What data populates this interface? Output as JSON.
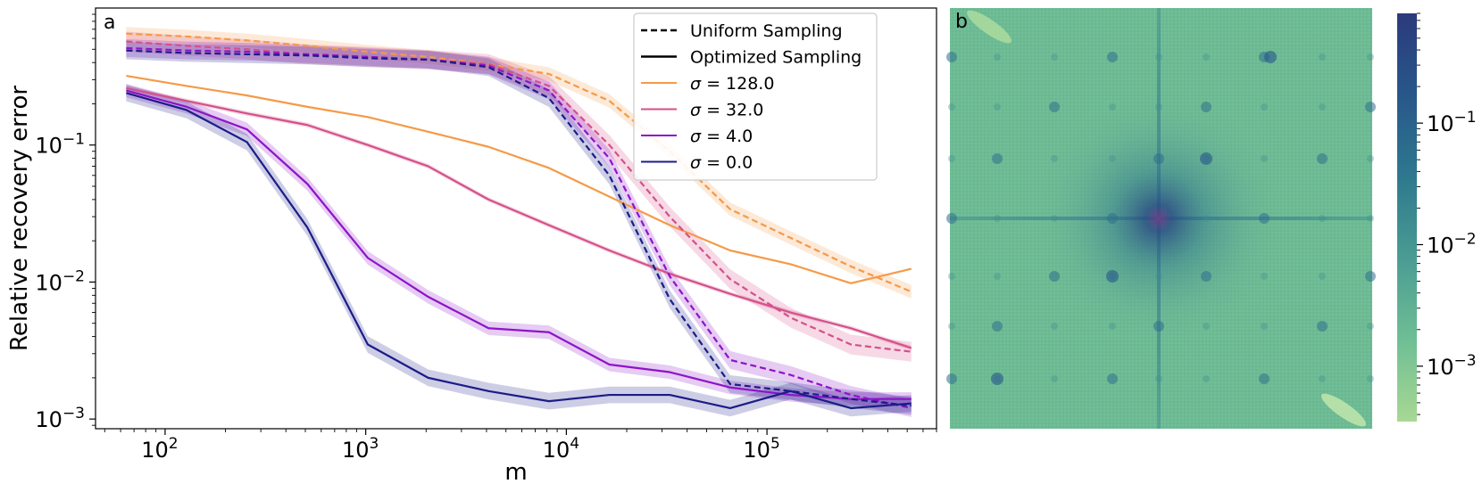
{
  "chart_data": [
    {
      "type": "line",
      "panel": "a",
      "xscale": "log",
      "yscale": "log",
      "xlabel": "m",
      "ylabel": "Relative recovery error",
      "xlim": [
        45,
        700000
      ],
      "ylim": [
        0.00085,
        1.0
      ],
      "xticks": [
        {
          "value": 100,
          "base": "10",
          "exp": "2"
        },
        {
          "value": 1000,
          "base": "10",
          "exp": "3"
        },
        {
          "value": 10000,
          "base": "10",
          "exp": "4"
        },
        {
          "value": 100000,
          "base": "10",
          "exp": "5"
        }
      ],
      "yticks": [
        {
          "value": 0.001,
          "base": "10",
          "exp": "−3"
        },
        {
          "value": 0.01,
          "base": "10",
          "exp": "−2"
        },
        {
          "value": 0.1,
          "base": "10",
          "exp": "−1"
        }
      ],
      "legend": {
        "placement": "top-right",
        "style_entries": [
          {
            "label": "Uniform Sampling",
            "dash": true
          },
          {
            "label": "Optimized Sampling",
            "dash": false
          }
        ]
      },
      "x": [
        64,
        128,
        256,
        512,
        1024,
        2048,
        4096,
        8192,
        16384,
        32768,
        65536,
        131072,
        262144,
        524288
      ],
      "series": [
        {
          "name": "σ = 128.0",
          "sym": "σ",
          "val": "128.0",
          "color": "#f59a48",
          "legend": true,
          "dashed": false,
          "band": 0.0,
          "values": [
            0.32,
            0.27,
            0.23,
            0.19,
            0.16,
            0.125,
            0.097,
            0.068,
            0.042,
            0.026,
            0.017,
            0.0135,
            0.0098,
            0.0125
          ]
        },
        {
          "name": "σ = 128.0",
          "sym": "σ",
          "val": "128.0",
          "color": "#f59a48",
          "legend": false,
          "dashed": true,
          "band": 0.12,
          "values": [
            0.65,
            0.62,
            0.58,
            0.53,
            0.48,
            0.44,
            0.39,
            0.33,
            0.21,
            0.09,
            0.034,
            0.021,
            0.013,
            0.0085
          ]
        },
        {
          "name": "σ = 32.0",
          "sym": "σ",
          "val": "32.0",
          "color": "#d4508a",
          "legend": true,
          "dashed": false,
          "band": 0.04,
          "values": [
            0.26,
            0.21,
            0.17,
            0.14,
            0.1,
            0.07,
            0.04,
            0.026,
            0.017,
            0.0115,
            0.0082,
            0.006,
            0.0046,
            0.0033
          ]
        },
        {
          "name": "σ = 32.0",
          "sym": "σ",
          "val": "32.0",
          "color": "#d4508a",
          "legend": false,
          "dashed": true,
          "band": 0.18,
          "values": [
            0.57,
            0.53,
            0.5,
            0.46,
            0.44,
            0.42,
            0.39,
            0.27,
            0.1,
            0.03,
            0.0105,
            0.0055,
            0.0035,
            0.0031
          ]
        },
        {
          "name": "σ = 4.0",
          "sym": "σ",
          "val": "4.0",
          "color": "#8e14c8",
          "legend": true,
          "dashed": false,
          "band": 0.12,
          "values": [
            0.25,
            0.19,
            0.13,
            0.052,
            0.015,
            0.0078,
            0.0046,
            0.0043,
            0.0025,
            0.0022,
            0.0017,
            0.0015,
            0.0014,
            0.0014
          ]
        },
        {
          "name": "σ = 4.0",
          "sym": "σ",
          "val": "4.0",
          "color": "#8e14c8",
          "legend": false,
          "dashed": true,
          "band": 0.16,
          "values": [
            0.51,
            0.49,
            0.48,
            0.46,
            0.44,
            0.42,
            0.38,
            0.25,
            0.08,
            0.011,
            0.0027,
            0.0021,
            0.0015,
            0.0012
          ]
        },
        {
          "name": "σ = 0.0",
          "sym": "σ",
          "val": "0.0",
          "color": "#1c1c88",
          "legend": true,
          "dashed": false,
          "band": 0.15,
          "values": [
            0.24,
            0.18,
            0.105,
            0.025,
            0.0035,
            0.002,
            0.0016,
            0.00135,
            0.0015,
            0.0015,
            0.0012,
            0.0016,
            0.0012,
            0.0013
          ]
        },
        {
          "name": "σ = 0.0",
          "sym": "σ",
          "val": "0.0",
          "color": "#1c1c88",
          "legend": false,
          "dashed": true,
          "band": 0.16,
          "values": [
            0.49,
            0.47,
            0.46,
            0.45,
            0.43,
            0.42,
            0.37,
            0.22,
            0.06,
            0.0075,
            0.0018,
            0.0016,
            0.0014,
            0.00125
          ]
        }
      ]
    },
    {
      "type": "heatmap",
      "panel": "b",
      "colormap": [
        "#a8d894",
        "#6fbe95",
        "#4a9c93",
        "#2e788e",
        "#28578a",
        "#2b3a7c"
      ],
      "color_scale": "log",
      "clim": [
        0.00035,
        0.8
      ],
      "colorbar_ticks": [
        {
          "value": 0.1,
          "base": "10",
          "exp": "−1"
        },
        {
          "value": 0.01,
          "base": "10",
          "exp": "−2"
        },
        {
          "value": 0.001,
          "base": "10",
          "exp": "−3"
        }
      ]
    }
  ]
}
